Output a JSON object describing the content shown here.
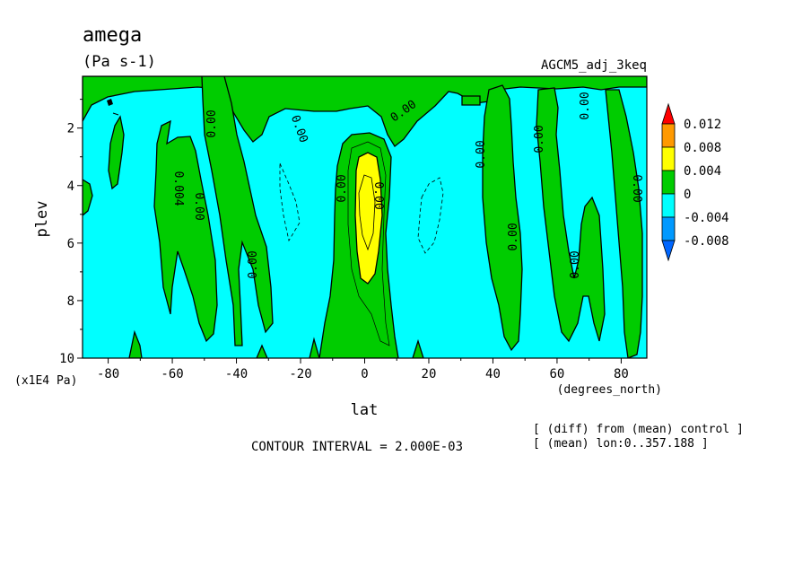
{
  "chart_data": {
    "type": "contour",
    "title": "amega",
    "units": "(Pa s-1)",
    "dataset": "AGCM5_adj_3keq",
    "xlabel": "lat",
    "xunits": "(degrees_north)",
    "ylabel": "plev",
    "yunits": "(x1E4 Pa)",
    "xlim": [
      -88,
      88
    ],
    "ylim": [
      10,
      0.2
    ],
    "x_ticks": [
      "-80",
      "-60",
      "-40",
      "-20",
      "0",
      "20",
      "40",
      "60",
      "80"
    ],
    "y_ticks": [
      "2",
      "4",
      "6",
      "8",
      "10"
    ],
    "contour_interval_text": "CONTOUR INTERVAL = 2.000E-03",
    "notes": [
      "[ (diff) from (mean) control ]",
      "[ (mean) lon:0..357.188 ]"
    ],
    "contour_labels": [
      "0.00",
      "0.00",
      "0.00",
      "0.00",
      "0.00",
      "0.004",
      "0.00",
      "0.00",
      "0.00",
      "0.00",
      "0.00",
      "0.00",
      "0.00",
      "0.00",
      "0.00",
      "0.00"
    ],
    "colorbar": {
      "labels": [
        "0.012",
        "0.008",
        "0.004",
        "0",
        "-0.004",
        "-0.008"
      ],
      "colors": [
        "#ff0000",
        "#ff9900",
        "#ffff00",
        "#00cc00",
        "#00ffff",
        "#0099ff",
        "#0066ff"
      ]
    },
    "fill_colors": {
      "negative": "#00ffff",
      "zero_band": "#00cc00",
      "positive": "#ffff00"
    }
  }
}
